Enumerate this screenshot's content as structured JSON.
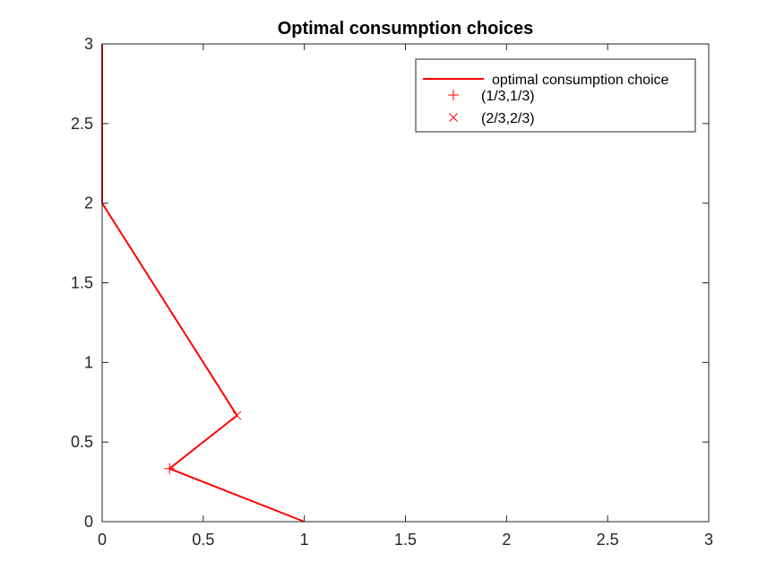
{
  "chart_data": {
    "type": "line",
    "title": "Optimal consumption choices",
    "xlabel": "",
    "ylabel": "",
    "xlim": [
      0,
      3
    ],
    "ylim": [
      0,
      3
    ],
    "grid": false,
    "legend_position": "top-right",
    "x_ticks": [
      0,
      0.5,
      1,
      1.5,
      2,
      2.5,
      3
    ],
    "x_tick_labels": [
      "0",
      "0.5",
      "1",
      "1.5",
      "2",
      "2.5",
      "3"
    ],
    "y_ticks": [
      0,
      0.5,
      1,
      1.5,
      2,
      2.5,
      3
    ],
    "y_tick_labels": [
      "0",
      "0.5",
      "1",
      "1.5",
      "2",
      "2.5",
      "3"
    ],
    "series": [
      {
        "name": "optimal consumption choice",
        "kind": "line",
        "color": "#ff0000",
        "x": [
          1,
          0.3333,
          0.6667,
          0,
          0
        ],
        "y": [
          0,
          0.3333,
          0.6667,
          2,
          3
        ]
      },
      {
        "name": "(1/3,1/3)",
        "kind": "marker",
        "marker": "plus",
        "color": "#ff0000",
        "x": [
          0.3333
        ],
        "y": [
          0.3333
        ]
      },
      {
        "name": "(2/3,2/3)",
        "kind": "marker",
        "marker": "cross",
        "color": "#ff0000",
        "x": [
          0.6667
        ],
        "y": [
          0.6667
        ]
      }
    ]
  }
}
